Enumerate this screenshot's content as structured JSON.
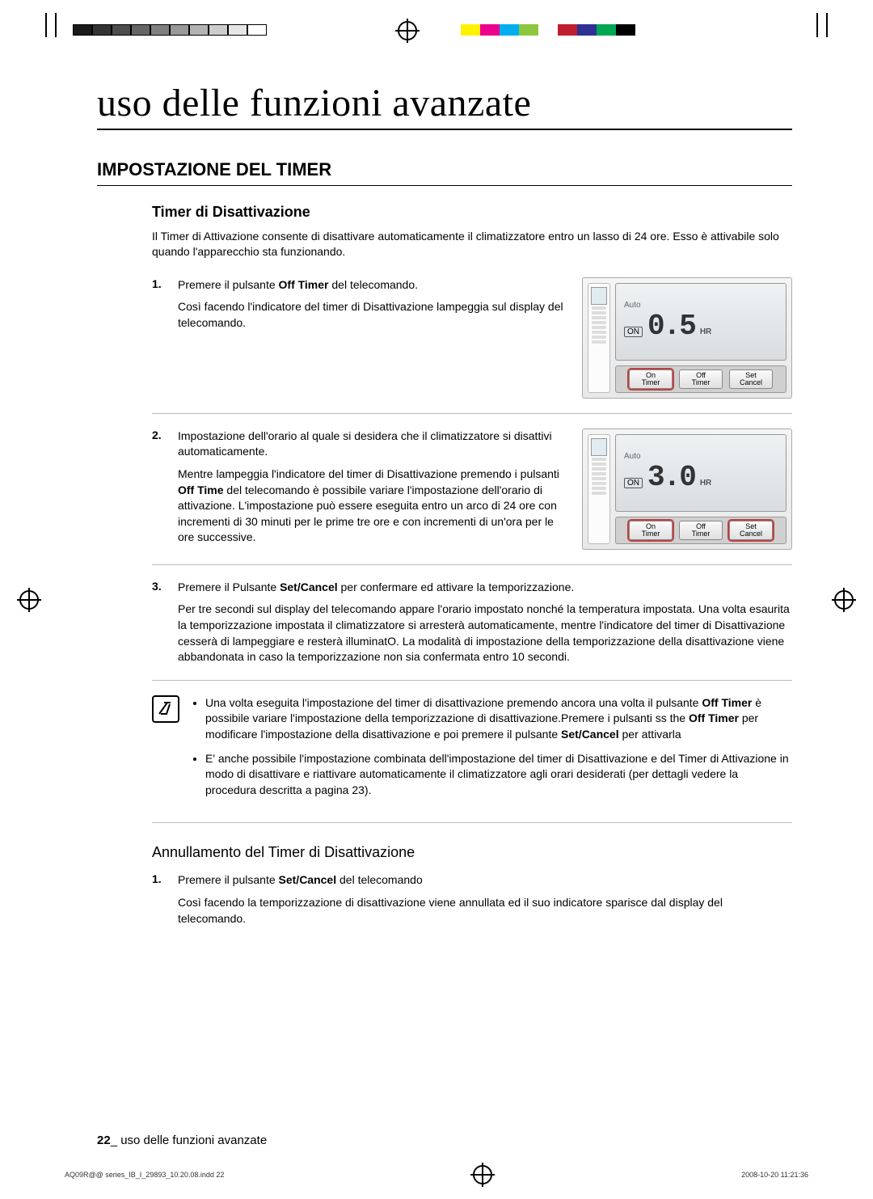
{
  "print_marks": {
    "gray_bar_colors": [
      "#1a1a1a",
      "#333333",
      "#4d4d4d",
      "#666666",
      "#808080",
      "#999999",
      "#b3b3b3",
      "#cccccc",
      "#e6e6e6",
      "#ffffff"
    ],
    "color_bar_colors": [
      "#fff200",
      "#ec008c",
      "#00aeef",
      "#8dc63f",
      "#ffffff",
      "#bf1e2e",
      "#2e3192",
      "#00a651",
      "#000000"
    ]
  },
  "page_title": "uso delle funzioni avanzate",
  "section_title": "IMPOSTAZIONE DEL TIMER",
  "sub_title": "Timer di Disattivazione",
  "intro": "Il Timer di Attivazione consente di disattivare automaticamente il climatizzatore entro un lasso di 24 ore. Esso è attivabile solo quando l'apparecchio sta funzionando.",
  "steps": [
    {
      "num": "1.",
      "lines": [
        {
          "plain_pre": "Premere il pulsante ",
          "bold": "Off Timer",
          "plain_post": " del telecomando."
        },
        {
          "plain": "Così facendo l'indicatore del timer di Disattivazione lampeggia sul display del telecomando."
        }
      ],
      "illustration": {
        "auto_label": "Auto",
        "on_label": "ON",
        "digits": "0.5",
        "hr_label": "HR",
        "buttons": [
          {
            "line1": "On",
            "line2": "Timer",
            "highlight": true
          },
          {
            "line1": "Off",
            "line2": "Timer",
            "highlight": false
          },
          {
            "line1": "Set",
            "line2": "Cancel",
            "highlight": false
          }
        ]
      }
    },
    {
      "num": "2.",
      "lines": [
        {
          "plain": "Impostazione dell'orario al quale si desidera che il climatizzatore si disattivi automaticamente."
        },
        {
          "plain_pre": "Mentre lampeggia l'indicatore del timer di Disattivazione premendo i pulsanti ",
          "bold": "Off Time",
          "plain_post": " del telecomando è possibile variare l'impostazione dell'orario di attivazione. L'impostazione può essere eseguita entro un arco di 24 ore con incrementi di 30 minuti per le prime tre ore e con incrementi di un'ora per le ore successive."
        }
      ],
      "illustration": {
        "auto_label": "Auto",
        "on_label": "ON",
        "digits": "3.0",
        "hr_label": "HR",
        "buttons": [
          {
            "line1": "On",
            "line2": "Timer",
            "highlight": true
          },
          {
            "line1": "Off",
            "line2": "Timer",
            "highlight": false
          },
          {
            "line1": "Set",
            "line2": "Cancel",
            "highlight": true
          }
        ]
      }
    },
    {
      "num": "3.",
      "lines": [
        {
          "plain_pre": "Premere il Pulsante ",
          "bold": "Set/Cancel",
          "plain_post": " per confermare ed attivare la temporizzazione."
        },
        {
          "plain": "Per tre secondi sul display del telecomando appare l'orario impostato nonché la temperatura impostata. Una volta esaurita la temporizzazione impostata il climatizzatore si arresterà automaticamente, mentre l'indicatore del timer di Disattivazione cesserà di lampeggiare e resterà illuminatO. La modalità di impostazione della temporizzazione della disattivazione viene abbandonata in caso la temporizzazione non sia confermata entro 10 secondi."
        }
      ],
      "illustration": null
    }
  ],
  "notes": [
    {
      "pre": "Una volta eseguita l'impostazione del timer di disattivazione premendo ancora una volta il pulsante ",
      "b1": "Off Timer",
      "mid": " è possibile variare l'impostazione della temporizzazione di disattivazione.Premere i pulsanti ss the ",
      "b2": "Off Timer",
      "mid2": " per modificare l'impostazione della disattivazione e poi premere il pulsante ",
      "b3": "Set/Cancel",
      "post": " per attivarla"
    },
    {
      "plain": "E' anche possibile l'impostazione combinata dell'impostazione del timer di Disattivazione e del Timer di Attivazione in modo di disattivare e riattivare automaticamente il climatizzatore agli orari desiderati (per dettagli vedere la procedura descritta a pagina 23)."
    }
  ],
  "cancel_title": "Annullamento del Timer di Disattivazione",
  "cancel_step": {
    "num": "1.",
    "line1_pre": "Premere il pulsante ",
    "line1_bold": "Set/Cancel",
    "line1_post": " del telecomando",
    "line2": "Così facendo la temporizzazione di disattivazione viene annullata ed il suo indicatore sparisce dal display del telecomando."
  },
  "footer": {
    "page_num": "22",
    "sep": "_ ",
    "text": "uso delle funzioni avanzate"
  },
  "print_footer": {
    "file": "AQ09R@@ series_IB_I_29893_10.20.08.indd   22",
    "date": "2008-10-20   11:21:36"
  }
}
